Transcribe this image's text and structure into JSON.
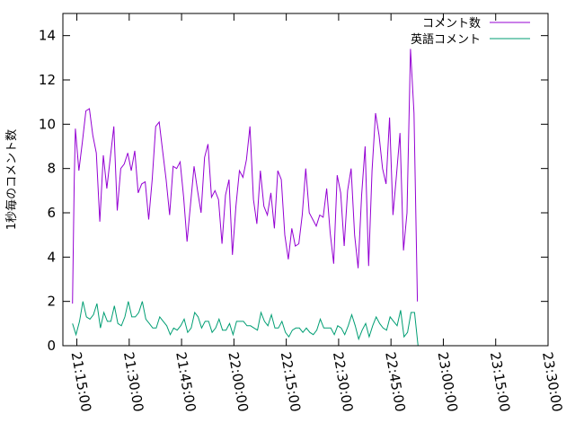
{
  "chart_data": {
    "type": "line",
    "title": "",
    "xlabel": "",
    "ylabel": "1秒毎のコメント数",
    "ylim": [
      0,
      15
    ],
    "yticks": [
      0,
      2,
      4,
      6,
      8,
      10,
      12,
      14
    ],
    "xlim": [
      "21:11:00",
      "23:30:00"
    ],
    "xticks": [
      "21:15:00",
      "21:30:00",
      "21:45:00",
      "22:00:00",
      "22:15:00",
      "22:30:00",
      "22:45:00",
      "23:00:00",
      "23:15:00",
      "23:30:00"
    ],
    "grid": false,
    "legend_position": "top-right",
    "series": [
      {
        "name": "コメント数",
        "color": "#9400d3",
        "points": [
          [
            "21:13:45",
            1.9
          ],
          [
            "21:14:15",
            7.4
          ],
          [
            "21:14:35",
            9.8
          ],
          [
            "21:15:35",
            7.9
          ],
          [
            "21:16:35",
            9.2
          ],
          [
            "21:17:35",
            10.6
          ],
          [
            "21:18:35",
            10.7
          ],
          [
            "21:19:35",
            9.5
          ],
          [
            "21:20:35",
            8.7
          ],
          [
            "21:21:35",
            5.6
          ],
          [
            "21:22:35",
            8.6
          ],
          [
            "21:23:35",
            7.1
          ],
          [
            "21:24:35",
            8.5
          ],
          [
            "21:25:35",
            9.9
          ],
          [
            "21:26:35",
            6.1
          ],
          [
            "21:27:35",
            8.0
          ],
          [
            "21:28:35",
            8.2
          ],
          [
            "21:29:35",
            8.7
          ],
          [
            "21:30:35",
            7.9
          ],
          [
            "21:31:35",
            8.8
          ],
          [
            "21:32:35",
            6.9
          ],
          [
            "21:33:35",
            7.3
          ],
          [
            "21:34:35",
            7.4
          ],
          [
            "21:35:35",
            5.7
          ],
          [
            "21:36:35",
            7.5
          ],
          [
            "21:37:35",
            9.9
          ],
          [
            "21:38:35",
            10.1
          ],
          [
            "21:39:35",
            8.8
          ],
          [
            "21:40:35",
            7.5
          ],
          [
            "21:41:35",
            5.9
          ],
          [
            "21:42:35",
            8.1
          ],
          [
            "21:43:35",
            8.0
          ],
          [
            "21:44:35",
            8.3
          ],
          [
            "21:45:35",
            6.7
          ],
          [
            "21:46:35",
            4.7
          ],
          [
            "21:47:35",
            6.4
          ],
          [
            "21:48:35",
            8.1
          ],
          [
            "21:49:35",
            7.0
          ],
          [
            "21:50:35",
            6.0
          ],
          [
            "21:51:35",
            8.5
          ],
          [
            "21:52:35",
            9.1
          ],
          [
            "21:53:35",
            6.7
          ],
          [
            "21:54:35",
            7.0
          ],
          [
            "21:55:35",
            6.6
          ],
          [
            "21:56:35",
            4.6
          ],
          [
            "21:57:35",
            6.8
          ],
          [
            "21:58:35",
            7.5
          ],
          [
            "21:59:35",
            4.1
          ],
          [
            "22:00:35",
            6.3
          ],
          [
            "22:01:35",
            7.9
          ],
          [
            "22:02:35",
            7.6
          ],
          [
            "22:03:35",
            8.4
          ],
          [
            "22:04:35",
            9.9
          ],
          [
            "22:05:35",
            6.6
          ],
          [
            "22:06:35",
            5.5
          ],
          [
            "22:07:35",
            7.9
          ],
          [
            "22:08:35",
            6.3
          ],
          [
            "22:09:35",
            5.9
          ],
          [
            "22:10:35",
            6.9
          ],
          [
            "22:11:35",
            5.3
          ],
          [
            "22:12:35",
            7.9
          ],
          [
            "22:13:35",
            7.5
          ],
          [
            "22:14:35",
            5.0
          ],
          [
            "22:15:35",
            3.9
          ],
          [
            "22:16:35",
            5.3
          ],
          [
            "22:17:35",
            4.5
          ],
          [
            "22:18:35",
            4.6
          ],
          [
            "22:19:35",
            5.9
          ],
          [
            "22:20:35",
            8.0
          ],
          [
            "22:21:35",
            6.0
          ],
          [
            "22:22:35",
            5.7
          ],
          [
            "22:23:35",
            5.4
          ],
          [
            "22:24:35",
            5.9
          ],
          [
            "22:25:35",
            5.8
          ],
          [
            "22:26:35",
            7.1
          ],
          [
            "22:27:35",
            5.1
          ],
          [
            "22:28:35",
            3.7
          ],
          [
            "22:29:35",
            7.7
          ],
          [
            "22:30:35",
            6.9
          ],
          [
            "22:31:35",
            4.5
          ],
          [
            "22:32:35",
            7.0
          ],
          [
            "22:33:35",
            8.0
          ],
          [
            "22:34:35",
            5.0
          ],
          [
            "22:35:35",
            3.5
          ],
          [
            "22:36:35",
            6.8
          ],
          [
            "22:37:35",
            9.0
          ],
          [
            "22:38:35",
            3.6
          ],
          [
            "22:39:35",
            7.9
          ],
          [
            "22:40:35",
            10.5
          ],
          [
            "22:41:35",
            9.5
          ],
          [
            "22:42:35",
            8.0
          ],
          [
            "22:43:35",
            7.3
          ],
          [
            "22:44:35",
            10.3
          ],
          [
            "22:45:35",
            5.9
          ],
          [
            "22:46:35",
            7.7
          ],
          [
            "22:47:35",
            9.6
          ],
          [
            "22:48:35",
            4.3
          ],
          [
            "22:49:35",
            6.0
          ],
          [
            "22:50:35",
            13.4
          ],
          [
            "22:51:35",
            10.5
          ],
          [
            "22:52:35",
            2.0
          ]
        ]
      },
      {
        "name": "英語コメント",
        "color": "#009e73",
        "points": [
          [
            "21:13:45",
            1.0
          ],
          [
            "21:14:45",
            0.5
          ],
          [
            "21:15:45",
            1.1
          ],
          [
            "21:16:45",
            2.0
          ],
          [
            "21:17:45",
            1.3
          ],
          [
            "21:18:45",
            1.2
          ],
          [
            "21:19:45",
            1.4
          ],
          [
            "21:20:45",
            1.9
          ],
          [
            "21:21:45",
            0.8
          ],
          [
            "21:22:45",
            1.5
          ],
          [
            "21:23:45",
            1.1
          ],
          [
            "21:24:45",
            1.1
          ],
          [
            "21:25:45",
            1.8
          ],
          [
            "21:26:45",
            1.0
          ],
          [
            "21:27:45",
            0.9
          ],
          [
            "21:28:45",
            1.3
          ],
          [
            "21:29:45",
            2.0
          ],
          [
            "21:30:45",
            1.3
          ],
          [
            "21:31:45",
            1.3
          ],
          [
            "21:32:45",
            1.5
          ],
          [
            "21:33:45",
            2.0
          ],
          [
            "21:34:45",
            1.2
          ],
          [
            "21:35:45",
            1.0
          ],
          [
            "21:36:45",
            0.8
          ],
          [
            "21:37:45",
            0.8
          ],
          [
            "21:38:45",
            1.3
          ],
          [
            "21:39:45",
            1.1
          ],
          [
            "21:40:45",
            0.9
          ],
          [
            "21:41:45",
            0.5
          ],
          [
            "21:42:45",
            0.8
          ],
          [
            "21:43:45",
            0.7
          ],
          [
            "21:44:45",
            0.9
          ],
          [
            "21:45:45",
            1.2
          ],
          [
            "21:46:45",
            0.6
          ],
          [
            "21:47:45",
            0.8
          ],
          [
            "21:48:45",
            1.5
          ],
          [
            "21:49:45",
            1.3
          ],
          [
            "21:50:45",
            0.8
          ],
          [
            "21:51:45",
            1.1
          ],
          [
            "21:52:45",
            1.1
          ],
          [
            "21:53:45",
            0.6
          ],
          [
            "21:54:45",
            0.8
          ],
          [
            "21:55:45",
            1.2
          ],
          [
            "21:56:45",
            0.7
          ],
          [
            "21:57:45",
            0.7
          ],
          [
            "21:58:45",
            1.0
          ],
          [
            "21:59:45",
            0.5
          ],
          [
            "22:00:45",
            1.1
          ],
          [
            "22:01:45",
            1.1
          ],
          [
            "22:02:45",
            1.1
          ],
          [
            "22:03:45",
            0.9
          ],
          [
            "22:04:45",
            0.9
          ],
          [
            "22:05:45",
            0.8
          ],
          [
            "22:06:45",
            0.7
          ],
          [
            "22:07:45",
            1.5
          ],
          [
            "22:08:45",
            1.1
          ],
          [
            "22:09:45",
            0.9
          ],
          [
            "22:10:45",
            1.4
          ],
          [
            "22:11:45",
            0.8
          ],
          [
            "22:12:45",
            0.8
          ],
          [
            "22:13:45",
            1.1
          ],
          [
            "22:14:45",
            0.6
          ],
          [
            "22:15:45",
            0.4
          ],
          [
            "22:16:45",
            0.7
          ],
          [
            "22:17:45",
            0.8
          ],
          [
            "22:18:45",
            0.8
          ],
          [
            "22:19:45",
            0.6
          ],
          [
            "22:20:45",
            0.8
          ],
          [
            "22:21:45",
            0.6
          ],
          [
            "22:22:45",
            0.5
          ],
          [
            "22:23:45",
            0.7
          ],
          [
            "22:24:45",
            1.2
          ],
          [
            "22:25:45",
            0.8
          ],
          [
            "22:26:45",
            0.8
          ],
          [
            "22:27:45",
            0.8
          ],
          [
            "22:28:45",
            0.5
          ],
          [
            "22:29:45",
            0.9
          ],
          [
            "22:30:45",
            0.8
          ],
          [
            "22:31:45",
            0.5
          ],
          [
            "22:32:45",
            0.9
          ],
          [
            "22:33:45",
            1.4
          ],
          [
            "22:34:45",
            0.9
          ],
          [
            "22:35:45",
            0.3
          ],
          [
            "22:36:45",
            0.7
          ],
          [
            "22:37:45",
            1.0
          ],
          [
            "22:38:45",
            0.4
          ],
          [
            "22:39:45",
            0.9
          ],
          [
            "22:40:45",
            1.3
          ],
          [
            "22:41:45",
            1.0
          ],
          [
            "22:42:45",
            0.8
          ],
          [
            "22:43:45",
            0.7
          ],
          [
            "22:44:45",
            1.3
          ],
          [
            "22:45:45",
            1.1
          ],
          [
            "22:46:45",
            0.9
          ],
          [
            "22:47:45",
            1.6
          ],
          [
            "22:48:45",
            0.4
          ],
          [
            "22:49:45",
            0.6
          ],
          [
            "22:50:45",
            1.5
          ],
          [
            "22:51:45",
            1.5
          ],
          [
            "22:52:45",
            0.0
          ]
        ]
      }
    ]
  }
}
